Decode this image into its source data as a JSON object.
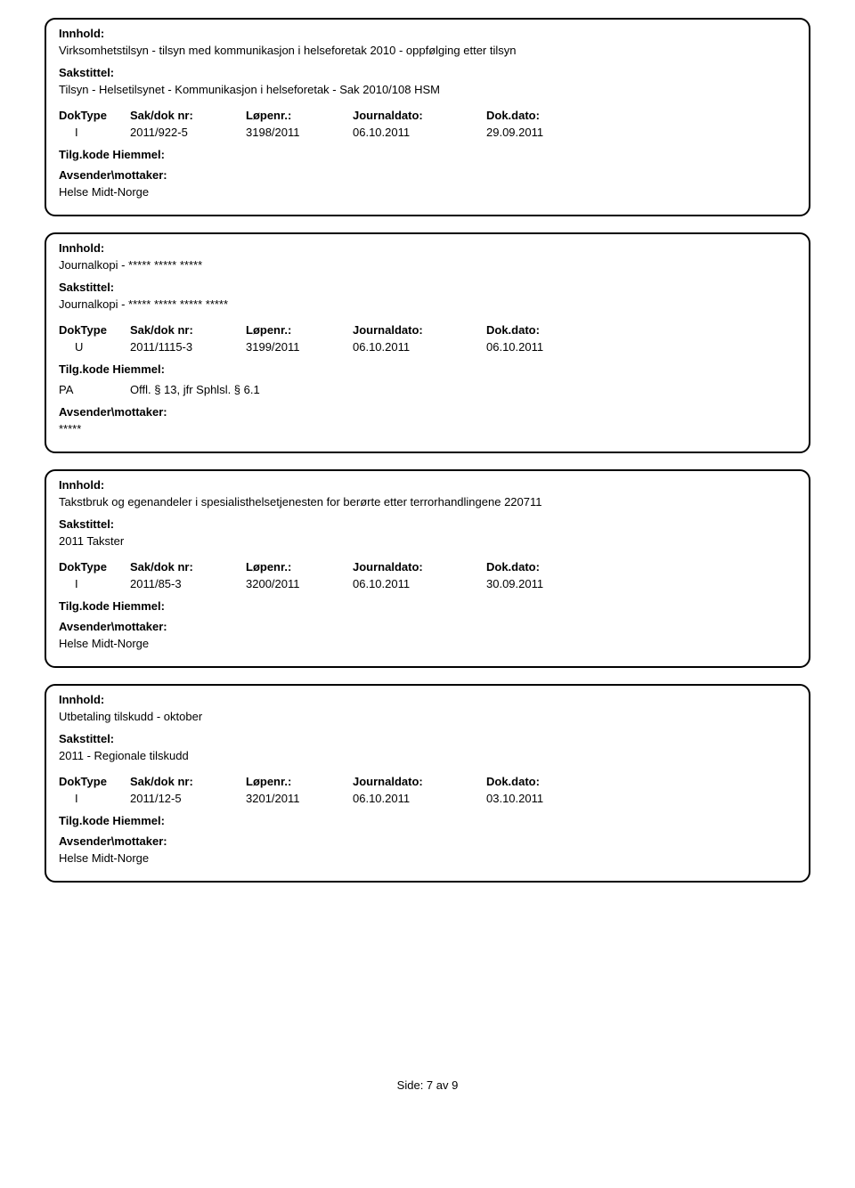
{
  "labels": {
    "innhold": "Innhold:",
    "sakstittel": "Sakstittel:",
    "doktype": "DokType",
    "saknr": "Sak/dok nr:",
    "lopenr": "Løpenr.:",
    "journaldato": "Journaldato:",
    "dokdato": "Dok.dato:",
    "tilgkode": "Tilg.kode",
    "hiemmel": "Hiemmel:",
    "avsender": "Avsender\\mottaker:"
  },
  "records": [
    {
      "innhold": "Virksomhetstilsyn - tilsyn med kommunikasjon i helseforetak 2010 - oppfølging etter tilsyn",
      "sakstittel": "Tilsyn - Helsetilsynet - Kommunikasjon i helseforetak - Sak 2010/108 HSM",
      "doktype": "I",
      "saknr": "2011/922-5",
      "lopenr": "3198/2011",
      "journaldato": "06.10.2011",
      "dokdato": "29.09.2011",
      "tilgkode": "",
      "hiemmel": "",
      "avsender": "Helse Midt-Norge"
    },
    {
      "innhold": "Journalkopi - ***** ***** *****",
      "sakstittel": "Journalkopi - ***** ***** ***** *****",
      "doktype": "U",
      "saknr": "2011/1115-3",
      "lopenr": "3199/2011",
      "journaldato": "06.10.2011",
      "dokdato": "06.10.2011",
      "tilgkode": "PA",
      "hiemmel": "Offl. § 13, jfr Sphlsl. § 6.1",
      "avsender": "*****"
    },
    {
      "innhold": "Takstbruk og egenandeler i spesialisthelsetjenesten for berørte etter terrorhandlingene 220711",
      "sakstittel": "2011 Takster",
      "doktype": "I",
      "saknr": "2011/85-3",
      "lopenr": "3200/2011",
      "journaldato": "06.10.2011",
      "dokdato": "30.09.2011",
      "tilgkode": "",
      "hiemmel": "",
      "avsender": "Helse Midt-Norge"
    },
    {
      "innhold": "Utbetaling tilskudd - oktober",
      "sakstittel": "2011 - Regionale tilskudd",
      "doktype": "I",
      "saknr": "2011/12-5",
      "lopenr": "3201/2011",
      "journaldato": "06.10.2011",
      "dokdato": "03.10.2011",
      "tilgkode": "",
      "hiemmel": "",
      "avsender": "Helse Midt-Norge"
    }
  ],
  "footer": "Side: 7 av 9"
}
